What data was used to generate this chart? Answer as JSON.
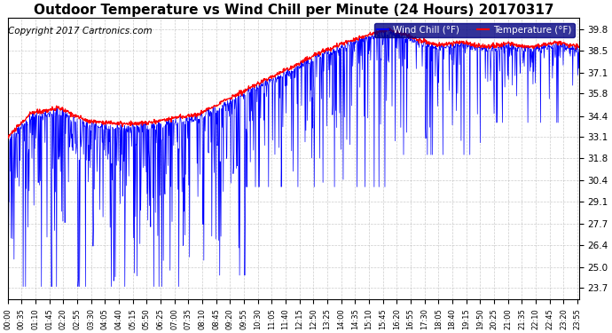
{
  "title": "Outdoor Temperature vs Wind Chill per Minute (24 Hours) 20170317",
  "copyright": "Copyright 2017 Cartronics.com",
  "ylabel_right_ticks": [
    23.7,
    25.0,
    26.4,
    27.7,
    29.1,
    30.4,
    31.8,
    33.1,
    34.4,
    35.8,
    37.1,
    38.5,
    39.8
  ],
  "ylim": [
    23.0,
    40.5
  ],
  "total_minutes": 1440,
  "legend_wind_chill_label": "Wind Chill (°F)",
  "legend_temp_label": "Temperature (°F)",
  "wind_chill_color": "#0000ff",
  "temp_color": "#ff0000",
  "background_color": "#ffffff",
  "grid_color": "#aaaaaa",
  "title_fontsize": 11,
  "copyright_fontsize": 7.5,
  "x_tick_interval": 35,
  "legend_bg": "#000080",
  "legend_text_color": "#ffffff"
}
